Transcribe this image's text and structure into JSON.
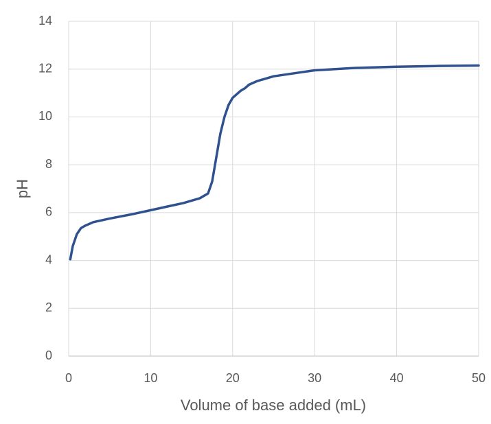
{
  "chart_data": {
    "type": "line",
    "x_label": "Volume of base added (mL)",
    "y_label": "pH",
    "x": [
      0.2,
      0.5,
      1,
      1.5,
      2,
      3,
      5,
      8,
      10,
      12,
      14,
      16,
      17,
      17.5,
      18,
      18.5,
      19,
      19.5,
      20,
      21,
      21.5,
      22,
      23,
      25,
      28,
      30,
      35,
      40,
      45,
      50
    ],
    "series": [
      {
        "color": "#2f528f",
        "values": [
          4.05,
          4.6,
          5.1,
          5.35,
          5.45,
          5.6,
          5.75,
          5.95,
          6.1,
          6.25,
          6.4,
          6.6,
          6.8,
          7.3,
          8.3,
          9.3,
          10.0,
          10.5,
          10.8,
          11.1,
          11.2,
          11.35,
          11.5,
          11.7,
          11.85,
          11.95,
          12.05,
          12.1,
          12.13,
          12.15
        ]
      }
    ],
    "xlim": [
      0,
      50
    ],
    "xticks": [
      0,
      10,
      20,
      30,
      40,
      50
    ],
    "ylim": [
      0,
      14
    ],
    "yticks": [
      0,
      2,
      4,
      6,
      8,
      10,
      12,
      14
    ],
    "grid": true
  }
}
